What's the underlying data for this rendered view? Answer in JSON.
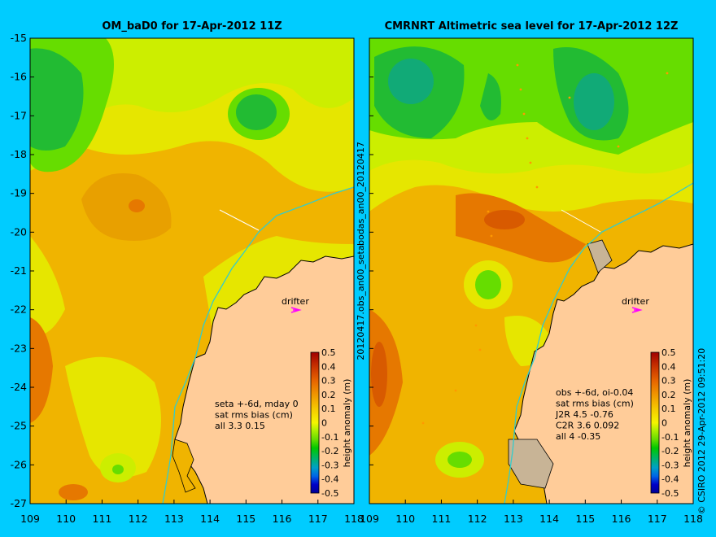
{
  "left_panel": {
    "title": "OM_baD0 for 17-Apr-2012 11Z",
    "annotation_lines": [
      "seta +-6d, mday 0",
      "sat rms bias (cm)",
      "all 3.3 0.15"
    ],
    "drifter_label": "drifter"
  },
  "right_panel": {
    "title": "CMRNRT Altimetric sea level  for 17-Apr-2012 12Z",
    "annotation_lines": [
      "obs +-6d, oi-0.04",
      "sat rms bias (cm)",
      "J2R   4.5 -0.76",
      "C2R   3.6 0.092",
      "all 4 -0.35"
    ],
    "drifter_label": "drifter"
  },
  "middle_vertical_text": "20120417.obs_an00_seta",
  "middle_vertical_text_top": "bodas_an00_20120417",
  "right_vertical_text": "© CSIRO 2012   29-Apr-2012 09:51:20",
  "axes": {
    "lon_labels": [
      "109",
      "110",
      "111",
      "112",
      "113",
      "114",
      "115",
      "116",
      "117",
      "118"
    ],
    "lat_labels": [
      "-15",
      "-16",
      "-17",
      "-18",
      "-19",
      "-20",
      "-21",
      "-22",
      "-23",
      "-24",
      "-25",
      "-26",
      "-27"
    ]
  },
  "colorbar": {
    "label": "height anomaly (m)",
    "ticks": [
      "0.5",
      "0.4",
      "0.3",
      "0.2",
      "0.1",
      "0",
      "-0.1",
      "-0.2",
      "-0.3",
      "-0.4",
      "-0.5"
    ],
    "colors": [
      "#a00000",
      "#c83200",
      "#e66400",
      "#f09600",
      "#f5c800",
      "#f5f500",
      "#b4f000",
      "#64dc00",
      "#00c800",
      "#00b464",
      "#00a0c8",
      "#0064e6",
      "#0000c8",
      "#000096"
    ]
  },
  "colors": {
    "background": "#00ccff",
    "land": "#ffcc99",
    "anomaly_high": "#e67800",
    "anomaly_mid": "#f0b400",
    "anomaly_low": "#ffff33",
    "anomaly_green": "#33cc33",
    "shelf_line": "#33cccc",
    "drifter_arrow": "#ff00ff"
  }
}
